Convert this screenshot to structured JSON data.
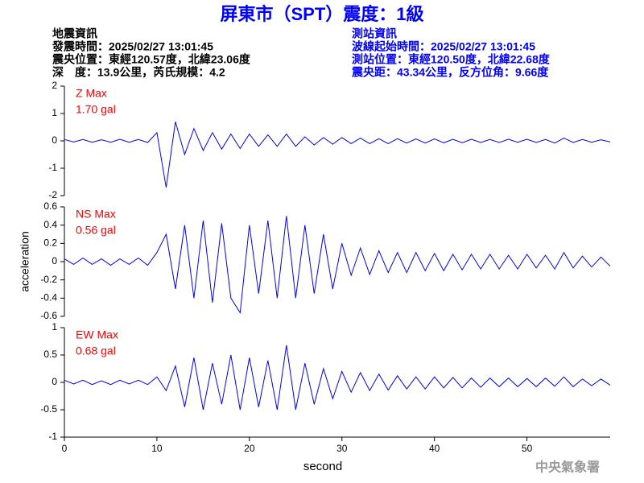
{
  "header": {
    "title": "屏東市（SPT）震度：1級",
    "left": [
      "地震資訊",
      "發震時間：2025/02/27 13:01:45",
      "震央位置：東經120.57度，北緯23.06度",
      "深　度：13.9公里，芮氏規模：4.2"
    ],
    "right": [
      "測站資訊",
      "波線起始時間：2025/02/27 13:01:45",
      "測站位置：東經120.50度，北緯22.68度",
      "震央距：43.34公里，反方位角：9.66度"
    ]
  },
  "watermark": "中央氣象署",
  "chart_data": [
    {
      "type": "line",
      "label": "Z Max",
      "annotation": "1.70 gal",
      "color": "#0000ff",
      "label_color": "#ff0000",
      "ylim": [
        -2,
        2
      ],
      "yticks": [
        -2,
        -1,
        0,
        1,
        2
      ],
      "xlim": [
        0,
        59
      ],
      "x": [
        0,
        1,
        2,
        3,
        4,
        5,
        6,
        7,
        8,
        9,
        10,
        11,
        12,
        13,
        14,
        15,
        16,
        17,
        18,
        19,
        20,
        21,
        22,
        23,
        24,
        25,
        26,
        27,
        28,
        29,
        30,
        31,
        32,
        33,
        34,
        35,
        36,
        37,
        38,
        39,
        40,
        41,
        42,
        43,
        44,
        45,
        46,
        47,
        48,
        49,
        50,
        51,
        52,
        53,
        54,
        55,
        56,
        57,
        58,
        59
      ],
      "values": [
        0.05,
        -0.04,
        0.05,
        -0.05,
        0.04,
        -0.05,
        0.06,
        -0.05,
        0.05,
        -0.06,
        0.3,
        -1.7,
        0.7,
        -0.5,
        0.45,
        -0.35,
        0.3,
        -0.3,
        0.25,
        -0.28,
        0.25,
        -0.2,
        0.22,
        -0.2,
        0.25,
        -0.2,
        0.15,
        -0.15,
        0.12,
        -0.12,
        0.12,
        -0.1,
        0.1,
        -0.1,
        0.08,
        -0.1,
        0.08,
        -0.08,
        0.07,
        -0.08,
        0.07,
        -0.07,
        0.06,
        -0.07,
        0.06,
        -0.06,
        0.05,
        -0.06,
        0.06,
        -0.05,
        0.06,
        -0.06,
        0.05,
        -0.08,
        0.1,
        -0.06,
        0.05,
        -0.05,
        0.04,
        -0.04
      ]
    },
    {
      "type": "line",
      "label": "NS Max",
      "annotation": "0.56 gal",
      "color": "#0000ff",
      "label_color": "#ff0000",
      "ylabel": "acceleration",
      "ylim": [
        -0.6,
        0.6
      ],
      "yticks": [
        -0.6,
        -0.4,
        -0.2,
        0,
        0.2,
        0.4,
        0.6
      ],
      "xlim": [
        0,
        59
      ],
      "x": [
        0,
        1,
        2,
        3,
        4,
        5,
        6,
        7,
        8,
        9,
        10,
        11,
        12,
        13,
        14,
        15,
        16,
        17,
        18,
        19,
        20,
        21,
        22,
        23,
        24,
        25,
        26,
        27,
        28,
        29,
        30,
        31,
        32,
        33,
        34,
        35,
        36,
        37,
        38,
        39,
        40,
        41,
        42,
        43,
        44,
        45,
        46,
        47,
        48,
        49,
        50,
        51,
        52,
        53,
        54,
        55,
        56,
        57,
        58,
        59
      ],
      "values": [
        0.03,
        -0.03,
        0.04,
        -0.03,
        0.03,
        -0.04,
        0.03,
        -0.03,
        0.04,
        -0.04,
        0.1,
        0.3,
        -0.3,
        0.4,
        -0.4,
        0.45,
        -0.45,
        0.42,
        -0.4,
        -0.56,
        0.4,
        -0.35,
        0.45,
        -0.4,
        0.5,
        -0.4,
        0.4,
        -0.35,
        0.3,
        -0.3,
        0.2,
        -0.15,
        0.15,
        -0.14,
        0.12,
        -0.12,
        0.1,
        -0.12,
        0.1,
        -0.1,
        0.09,
        -0.1,
        0.08,
        -0.09,
        0.08,
        -0.08,
        0.08,
        -0.08,
        0.07,
        -0.08,
        0.08,
        -0.07,
        0.07,
        -0.08,
        0.1,
        -0.07,
        0.06,
        -0.06,
        0.05,
        -0.05
      ]
    },
    {
      "type": "line",
      "label": "EW Max",
      "annotation": "0.68 gal",
      "color": "#0000ff",
      "label_color": "#ff0000",
      "xlabel": "second",
      "ylim": [
        -1,
        1
      ],
      "yticks": [
        -1,
        -0.5,
        0,
        0.5,
        1
      ],
      "xlim": [
        0,
        59
      ],
      "xticks": [
        0,
        10,
        20,
        30,
        40,
        50
      ],
      "x": [
        0,
        1,
        2,
        3,
        4,
        5,
        6,
        7,
        8,
        9,
        10,
        11,
        12,
        13,
        14,
        15,
        16,
        17,
        18,
        19,
        20,
        21,
        22,
        23,
        24,
        25,
        26,
        27,
        28,
        29,
        30,
        31,
        32,
        33,
        34,
        35,
        36,
        37,
        38,
        39,
        40,
        41,
        42,
        43,
        44,
        45,
        46,
        47,
        48,
        49,
        50,
        51,
        52,
        53,
        54,
        55,
        56,
        57,
        58,
        59
      ],
      "values": [
        0.04,
        -0.03,
        0.04,
        -0.04,
        0.03,
        -0.04,
        0.04,
        -0.03,
        0.04,
        -0.04,
        0.1,
        -0.15,
        0.3,
        -0.45,
        0.45,
        -0.5,
        0.35,
        -0.4,
        0.5,
        -0.5,
        0.45,
        -0.45,
        0.4,
        -0.5,
        0.68,
        -0.5,
        0.35,
        -0.4,
        0.25,
        -0.3,
        0.2,
        -0.18,
        0.18,
        -0.15,
        0.15,
        -0.14,
        0.12,
        -0.12,
        0.1,
        -0.12,
        0.1,
        -0.1,
        0.09,
        -0.1,
        0.08,
        -0.09,
        0.08,
        -0.08,
        0.08,
        -0.08,
        0.07,
        -0.08,
        0.08,
        -0.07,
        0.1,
        -0.08,
        0.06,
        -0.06,
        0.06,
        -0.05
      ]
    }
  ]
}
